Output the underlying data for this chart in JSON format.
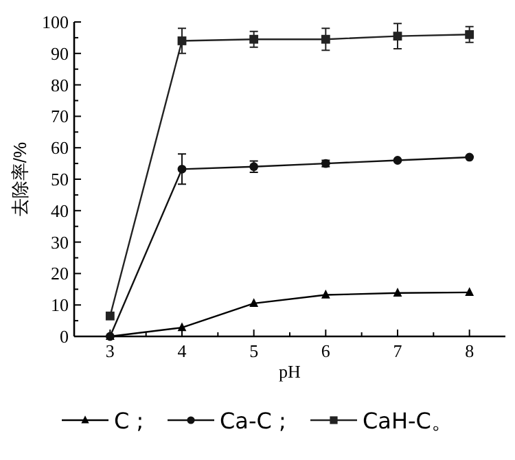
{
  "chart_data": {
    "type": "line",
    "xlabel": "pH",
    "ylabel": "去除率/%",
    "x": [
      3,
      4,
      5,
      6,
      7,
      8
    ],
    "xlim": [
      2.5,
      8.5
    ],
    "xticks": [
      3,
      4,
      5,
      6,
      7,
      8
    ],
    "ylim": [
      0,
      100
    ],
    "yticks": [
      0,
      10,
      20,
      30,
      40,
      50,
      60,
      70,
      80,
      90,
      100
    ],
    "grid": false,
    "legend": "bottom",
    "line_style": "solid",
    "series": [
      {
        "name": "C ;",
        "color": "#000000",
        "marker": "triangle",
        "values": [
          0,
          2.8,
          10.5,
          13.2,
          13.8,
          14
        ]
      },
      {
        "name": "Ca-C ;",
        "color": "#111111",
        "marker": "circle",
        "values": [
          0,
          53.2,
          54,
          55,
          56,
          57
        ],
        "errors": [
          null,
          4.8,
          1.8,
          1,
          null,
          null
        ]
      },
      {
        "name": "CaH-C。",
        "color": "#222222",
        "marker": "square",
        "values": [
          6.5,
          94,
          94.5,
          94.5,
          95.5,
          96
        ],
        "errors": [
          null,
          4,
          2.5,
          3.5,
          4,
          2.5
        ]
      }
    ]
  }
}
